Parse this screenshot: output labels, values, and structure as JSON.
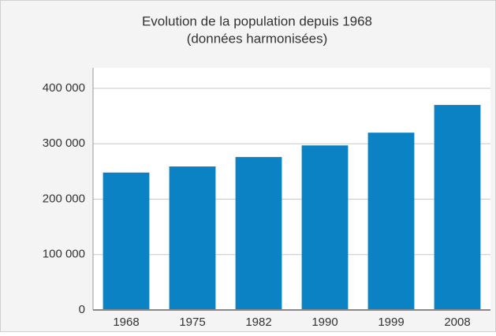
{
  "chart_data": {
    "type": "bar",
    "title": "Evolution de la population depuis 1968",
    "subtitle": "(données harmonisées)",
    "categories": [
      "1968",
      "1975",
      "1982",
      "1990",
      "1999",
      "2008"
    ],
    "values": [
      248000,
      259000,
      276000,
      297000,
      320000,
      370000
    ],
    "color": "#0a82c3",
    "ylim": [
      0,
      400000
    ],
    "yticks": [
      0,
      {
        "value": 100000,
        "label": "100 000"
      },
      {
        "value": 200000,
        "label": "200 000"
      },
      {
        "value": 300000,
        "label": "300 000"
      },
      {
        "value": 400000,
        "label": "400 000"
      }
    ],
    "grid": true
  }
}
